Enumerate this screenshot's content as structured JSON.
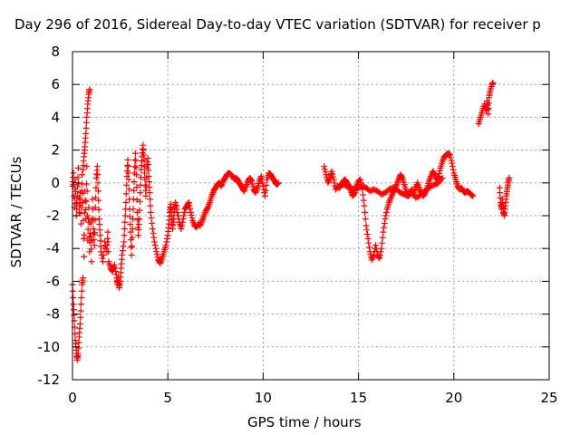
{
  "chart_data": {
    "type": "scatter",
    "title": "Day 296 of 2016, Sidereal Day-to-day VTEC variation (SDTVAR) for receiver p",
    "xlabel": "GPS time / hours",
    "ylabel": "SDTVAR / TECUs",
    "xlim": [
      0,
      25
    ],
    "ylim": [
      -12,
      8
    ],
    "xticks": [
      0,
      5,
      10,
      15,
      20,
      25
    ],
    "yticks": [
      -12,
      -10,
      -8,
      -6,
      -4,
      -2,
      0,
      2,
      4,
      6,
      8
    ],
    "grid": true,
    "marker": "+",
    "color": "#ff0000",
    "segments": [
      [
        [
          0.0,
          -0.2
        ],
        [
          0.05,
          0.6
        ],
        [
          0.1,
          -1.5
        ],
        [
          0.15,
          0.2
        ],
        [
          0.2,
          -2.0
        ],
        [
          0.25,
          -0.8
        ],
        [
          0.3,
          0.9
        ],
        [
          0.35,
          -1.8
        ],
        [
          0.4,
          -0.6
        ],
        [
          0.45,
          -2.5
        ],
        [
          0.5,
          0.5
        ],
        [
          0.55,
          -1.2
        ],
        [
          0.6,
          -4.5
        ],
        [
          0.65,
          -0.5
        ],
        [
          0.7,
          -2.2
        ],
        [
          0.75,
          1.0
        ],
        [
          0.8,
          -3.5
        ],
        [
          0.85,
          -1.5
        ],
        [
          0.9,
          -4.2
        ],
        [
          0.95,
          -2.5
        ],
        [
          1.0,
          -4.8
        ],
        [
          1.05,
          -1.0
        ],
        [
          1.1,
          -2.8
        ],
        [
          1.15,
          -3.8
        ],
        [
          1.2,
          -1.5
        ],
        [
          1.25,
          0.3
        ],
        [
          1.3,
          1.0
        ],
        [
          1.35,
          -0.5
        ],
        [
          1.4,
          -2.2
        ],
        [
          1.45,
          -3.2
        ],
        [
          1.5,
          -4.2
        ],
        [
          1.6,
          -4.8
        ],
        [
          1.7,
          -3.6
        ],
        [
          1.8,
          -4.2
        ],
        [
          1.85,
          -3.0
        ],
        [
          1.9,
          -4.8
        ],
        [
          2.0,
          -5.2
        ],
        [
          2.1,
          -5.4
        ],
        [
          2.2,
          -5.0
        ],
        [
          2.3,
          -5.6
        ],
        [
          2.35,
          -6.2
        ],
        [
          2.4,
          -5.8
        ],
        [
          2.45,
          -6.4
        ],
        [
          2.5,
          -6.0
        ],
        [
          2.55,
          -5.2
        ],
        [
          2.6,
          -4.4
        ],
        [
          2.7,
          -3.6
        ],
        [
          2.75,
          -2.4
        ],
        [
          2.8,
          -1.2
        ],
        [
          2.85,
          0.4
        ],
        [
          2.9,
          1.4
        ],
        [
          2.95,
          0.2
        ],
        [
          3.0,
          -1.6
        ],
        [
          3.05,
          -3.0
        ],
        [
          3.1,
          -4.4
        ],
        [
          3.15,
          -2.8
        ],
        [
          3.2,
          -1.0
        ],
        [
          3.25,
          0.6
        ],
        [
          3.3,
          1.8
        ],
        [
          3.35,
          0.5
        ],
        [
          3.4,
          -1.8
        ],
        [
          3.45,
          -3.2
        ],
        [
          3.5,
          -2.2
        ],
        [
          3.55,
          -0.6
        ],
        [
          3.6,
          0.8
        ],
        [
          3.65,
          1.6
        ],
        [
          3.7,
          2.3
        ],
        [
          3.75,
          1.4
        ],
        [
          3.8,
          0.2
        ],
        [
          3.85,
          -0.8
        ],
        [
          3.9,
          0.9
        ],
        [
          3.95,
          1.5
        ],
        [
          4.0,
          0.4
        ],
        [
          4.05,
          -0.6
        ],
        [
          4.1,
          -1.8
        ],
        [
          4.2,
          -2.8
        ],
        [
          4.3,
          -3.6
        ],
        [
          4.4,
          -4.2
        ],
        [
          4.5,
          -4.7
        ],
        [
          4.6,
          -4.9
        ],
        [
          4.7,
          -4.6
        ],
        [
          4.8,
          -4.2
        ],
        [
          4.9,
          -3.8
        ],
        [
          5.0,
          -3.2
        ],
        [
          5.05,
          -2.5
        ],
        [
          5.1,
          -1.8
        ],
        [
          5.15,
          -1.3
        ],
        [
          5.2,
          -2.0
        ],
        [
          5.25,
          -2.8
        ],
        [
          5.3,
          -2.2
        ],
        [
          5.35,
          -1.6
        ],
        [
          5.4,
          -1.2
        ],
        [
          5.5,
          -1.8
        ],
        [
          5.6,
          -2.4
        ],
        [
          5.7,
          -2.8
        ],
        [
          5.8,
          -2.2
        ],
        [
          5.9,
          -1.6
        ],
        [
          6.0,
          -1.4
        ],
        [
          6.1,
          -1.2
        ],
        [
          6.2,
          -1.8
        ],
        [
          6.3,
          -2.3
        ],
        [
          6.4,
          -2.6
        ],
        [
          6.5,
          -2.7
        ],
        [
          6.6,
          -2.5
        ],
        [
          6.7,
          -2.6
        ],
        [
          6.8,
          -2.3
        ],
        [
          6.9,
          -2.0
        ],
        [
          7.0,
          -1.7
        ],
        [
          7.1,
          -1.5
        ],
        [
          7.2,
          -1.2
        ],
        [
          7.3,
          -0.8
        ],
        [
          7.4,
          -0.5
        ],
        [
          7.5,
          -0.3
        ],
        [
          7.6,
          -0.1
        ],
        [
          7.7,
          0.0
        ],
        [
          7.8,
          -0.2
        ],
        [
          7.9,
          0.1
        ],
        [
          8.0,
          0.3
        ],
        [
          8.1,
          0.5
        ],
        [
          8.2,
          0.6
        ],
        [
          8.3,
          0.5
        ],
        [
          8.4,
          0.4
        ],
        [
          8.5,
          0.2
        ],
        [
          8.6,
          0.3
        ],
        [
          8.7,
          0.1
        ],
        [
          8.8,
          -0.1
        ],
        [
          8.9,
          -0.3
        ],
        [
          9.0,
          -0.5
        ],
        [
          9.1,
          -0.2
        ],
        [
          9.2,
          0.1
        ],
        [
          9.3,
          0.3
        ],
        [
          9.4,
          0.1
        ],
        [
          9.5,
          -0.4
        ],
        [
          9.6,
          -0.6
        ],
        [
          9.7,
          -0.3
        ],
        [
          9.8,
          0.1
        ],
        [
          9.9,
          0.4
        ],
        [
          10.0,
          -0.2
        ],
        [
          10.1,
          -0.8
        ],
        [
          10.2,
          0.2
        ],
        [
          10.3,
          0.6
        ],
        [
          10.4,
          0.5
        ],
        [
          10.5,
          0.3
        ],
        [
          10.6,
          0.1
        ],
        [
          10.7,
          -0.1
        ],
        [
          10.8,
          0.0
        ]
      ],
      [
        [
          0.0,
          -6.2
        ],
        [
          0.05,
          -7.4
        ],
        [
          0.1,
          -8.4
        ],
        [
          0.15,
          -9.6
        ],
        [
          0.2,
          -10.2
        ],
        [
          0.25,
          -10.8
        ],
        [
          0.3,
          -10.4
        ],
        [
          0.35,
          -9.4
        ],
        [
          0.4,
          -8.6
        ],
        [
          0.45,
          -7.4
        ],
        [
          0.5,
          -6.2
        ],
        [
          0.55,
          -5.8
        ]
      ],
      [
        [
          0.55,
          0.8
        ],
        [
          0.6,
          1.6
        ],
        [
          0.65,
          2.2
        ],
        [
          0.7,
          3.0
        ],
        [
          0.75,
          4.0
        ],
        [
          0.8,
          4.8
        ],
        [
          0.85,
          5.4
        ],
        [
          0.9,
          5.7
        ]
      ],
      [
        [
          13.2,
          1.0
        ],
        [
          13.3,
          0.5
        ],
        [
          13.4,
          0.0
        ],
        [
          13.5,
          0.3
        ],
        [
          13.6,
          0.7
        ],
        [
          13.7,
          0.2
        ],
        [
          13.8,
          -0.4
        ],
        [
          13.9,
          -0.2
        ],
        [
          14.0,
          -0.3
        ],
        [
          14.1,
          -0.1
        ],
        [
          14.2,
          0.1
        ],
        [
          14.3,
          0.2
        ],
        [
          14.4,
          0.0
        ],
        [
          14.5,
          -0.2
        ],
        [
          14.6,
          -0.5
        ],
        [
          14.7,
          -0.8
        ],
        [
          14.8,
          -0.6
        ],
        [
          14.9,
          -0.2
        ],
        [
          15.0,
          0.1
        ],
        [
          15.1,
          0.2
        ],
        [
          15.2,
          -0.4
        ],
        [
          15.3,
          -1.4
        ],
        [
          15.4,
          -2.6
        ],
        [
          15.5,
          -3.4
        ],
        [
          15.6,
          -4.2
        ],
        [
          15.7,
          -4.7
        ],
        [
          15.8,
          -4.4
        ],
        [
          15.9,
          -3.8
        ],
        [
          16.0,
          -4.4
        ],
        [
          16.1,
          -4.6
        ],
        [
          16.2,
          -4.0
        ],
        [
          16.3,
          -3.0
        ],
        [
          16.4,
          -2.2
        ],
        [
          16.5,
          -1.6
        ],
        [
          16.6,
          -1.2
        ],
        [
          16.7,
          -0.9
        ],
        [
          16.8,
          -0.6
        ],
        [
          16.9,
          -0.4
        ],
        [
          17.0,
          -0.1
        ],
        [
          17.1,
          0.2
        ],
        [
          17.2,
          0.5
        ],
        [
          17.3,
          0.3
        ],
        [
          17.4,
          -0.1
        ],
        [
          17.5,
          -0.5
        ],
        [
          17.6,
          -0.8
        ],
        [
          17.7,
          -0.6
        ],
        [
          17.8,
          -0.4
        ],
        [
          17.9,
          -0.7
        ],
        [
          18.0,
          -0.3
        ],
        [
          18.1,
          0.0
        ],
        [
          18.2,
          -0.4
        ],
        [
          18.3,
          -0.6
        ],
        [
          18.4,
          -0.8
        ],
        [
          18.5,
          -0.6
        ],
        [
          18.6,
          -0.3
        ],
        [
          18.7,
          0.1
        ],
        [
          18.8,
          0.4
        ],
        [
          18.9,
          0.7
        ],
        [
          19.0,
          0.5
        ],
        [
          19.1,
          0.2
        ],
        [
          19.2,
          0.4
        ],
        [
          19.3,
          0.9
        ],
        [
          19.4,
          1.3
        ],
        [
          19.5,
          1.6
        ],
        [
          19.6,
          1.7
        ],
        [
          19.7,
          1.8
        ],
        [
          19.8,
          1.7
        ],
        [
          19.9,
          1.2
        ],
        [
          20.0,
          0.6
        ],
        [
          20.1,
          0.2
        ],
        [
          20.2,
          -0.2
        ],
        [
          20.3,
          -0.4
        ],
        [
          20.4,
          -0.3
        ],
        [
          20.5,
          -0.5
        ],
        [
          20.6,
          -0.6
        ],
        [
          20.7,
          -0.5
        ],
        [
          20.8,
          -0.6
        ],
        [
          20.9,
          -0.7
        ],
        [
          21.0,
          -0.8
        ]
      ],
      [
        [
          14.0,
          -0.2
        ],
        [
          14.2,
          -0.1
        ],
        [
          14.4,
          -0.2
        ],
        [
          14.6,
          -0.3
        ],
        [
          14.8,
          -0.4
        ],
        [
          15.0,
          -0.3
        ],
        [
          15.2,
          -0.2
        ],
        [
          15.4,
          -0.3
        ],
        [
          15.6,
          -0.5
        ],
        [
          15.8,
          -0.4
        ],
        [
          16.0,
          -0.5
        ],
        [
          16.2,
          -0.7
        ],
        [
          16.4,
          -0.6
        ],
        [
          16.6,
          -0.4
        ],
        [
          16.8,
          -0.3
        ],
        [
          17.0,
          -0.4
        ],
        [
          17.2,
          -0.6
        ],
        [
          17.4,
          -0.7
        ],
        [
          17.6,
          -0.8
        ],
        [
          17.8,
          -0.6
        ],
        [
          18.0,
          -0.9
        ],
        [
          18.2,
          -0.8
        ],
        [
          18.4,
          -0.6
        ],
        [
          18.6,
          -0.4
        ],
        [
          18.8,
          -0.2
        ],
        [
          19.0,
          -0.1
        ],
        [
          19.2,
          0.0
        ],
        [
          19.4,
          0.3
        ]
      ],
      [
        [
          21.3,
          3.6
        ],
        [
          21.4,
          4.0
        ],
        [
          21.5,
          4.4
        ],
        [
          21.6,
          4.8
        ],
        [
          21.7,
          4.4
        ],
        [
          21.75,
          5.0
        ],
        [
          21.8,
          4.2
        ],
        [
          21.85,
          5.2
        ],
        [
          21.9,
          5.6
        ],
        [
          22.0,
          6.0
        ],
        [
          22.05,
          6.1
        ]
      ],
      [
        [
          22.4,
          -0.3
        ],
        [
          22.45,
          -1.2
        ],
        [
          22.5,
          -1.6
        ],
        [
          22.55,
          -1.0
        ],
        [
          22.6,
          -1.8
        ],
        [
          22.65,
          -2.0
        ],
        [
          22.7,
          -1.4
        ],
        [
          22.75,
          -0.8
        ],
        [
          22.8,
          -0.4
        ],
        [
          22.85,
          0.0
        ],
        [
          22.9,
          0.3
        ]
      ]
    ]
  }
}
